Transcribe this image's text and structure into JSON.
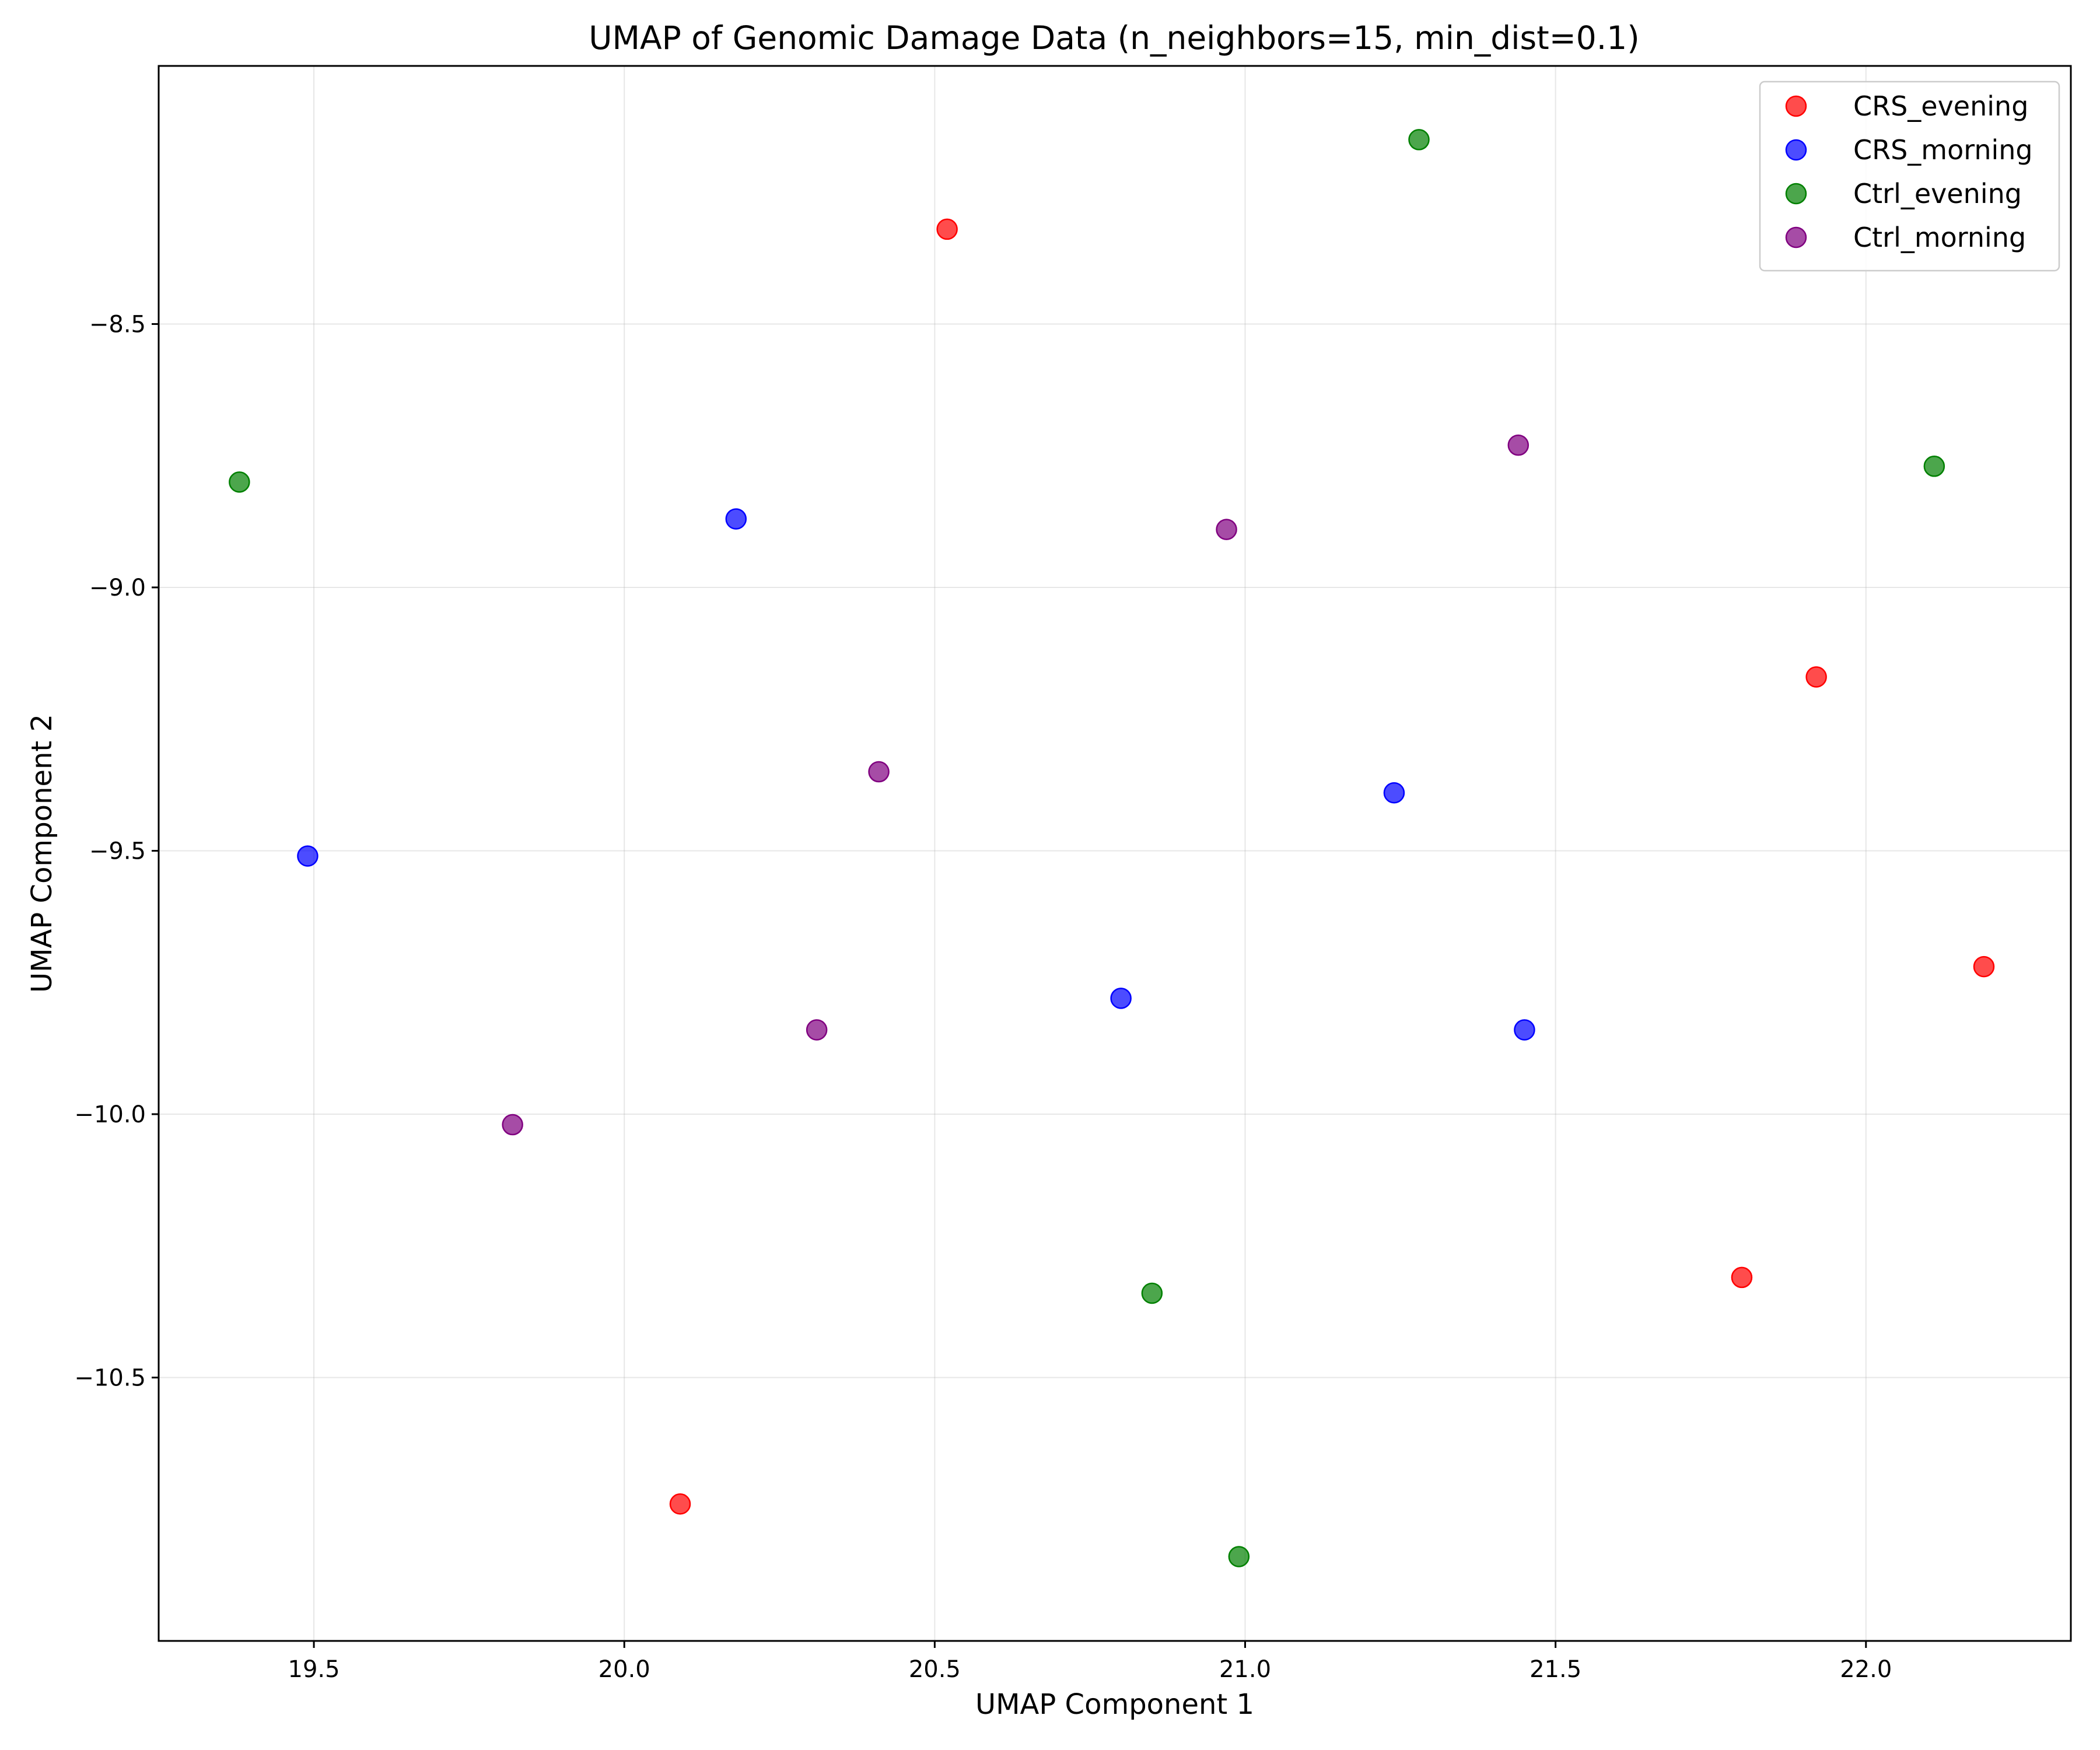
{
  "chart_data": {
    "type": "scatter",
    "title": "UMAP of Genomic Damage Data (n_neighbors=15, min_dist=0.1)",
    "xlabel": "UMAP Component 1",
    "ylabel": "UMAP Component 2",
    "xlim": [
      19.25,
      22.33
    ],
    "ylim": [
      -11.0,
      -8.01
    ],
    "xticks": [
      19.5,
      20.0,
      20.5,
      21.0,
      21.5,
      22.0
    ],
    "yticks": [
      -8.5,
      -9.0,
      -9.5,
      -10.0,
      -10.5
    ],
    "xtick_labels": [
      "19.5",
      "20.0",
      "20.5",
      "21.0",
      "21.5",
      "22.0"
    ],
    "ytick_labels": [
      "−8.5",
      "−9.0",
      "−9.5",
      "−10.0",
      "−10.5"
    ],
    "grid": true,
    "legend_position": "top-right",
    "series": [
      {
        "name": "CRS_evening",
        "color": "#ff0000",
        "points": [
          [
            20.52,
            -8.32
          ],
          [
            21.92,
            -9.17
          ],
          [
            22.19,
            -9.72
          ],
          [
            21.8,
            -10.31
          ],
          [
            20.09,
            -10.74
          ]
        ]
      },
      {
        "name": "CRS_morning",
        "color": "#0000ff",
        "points": [
          [
            20.18,
            -8.87
          ],
          [
            19.49,
            -9.51
          ],
          [
            21.24,
            -9.39
          ],
          [
            20.8,
            -9.78
          ],
          [
            21.45,
            -9.84
          ]
        ]
      },
      {
        "name": "Ctrl_evening",
        "color": "#008000",
        "points": [
          [
            21.28,
            -8.15
          ],
          [
            19.38,
            -8.8
          ],
          [
            22.11,
            -8.77
          ],
          [
            20.85,
            -10.34
          ],
          [
            20.99,
            -10.84
          ]
        ]
      },
      {
        "name": "Ctrl_morning",
        "color": "#800080",
        "points": [
          [
            21.44,
            -8.73
          ],
          [
            20.97,
            -8.89
          ],
          [
            20.41,
            -9.35
          ],
          [
            20.31,
            -9.84
          ],
          [
            19.82,
            -10.02
          ]
        ]
      }
    ]
  }
}
